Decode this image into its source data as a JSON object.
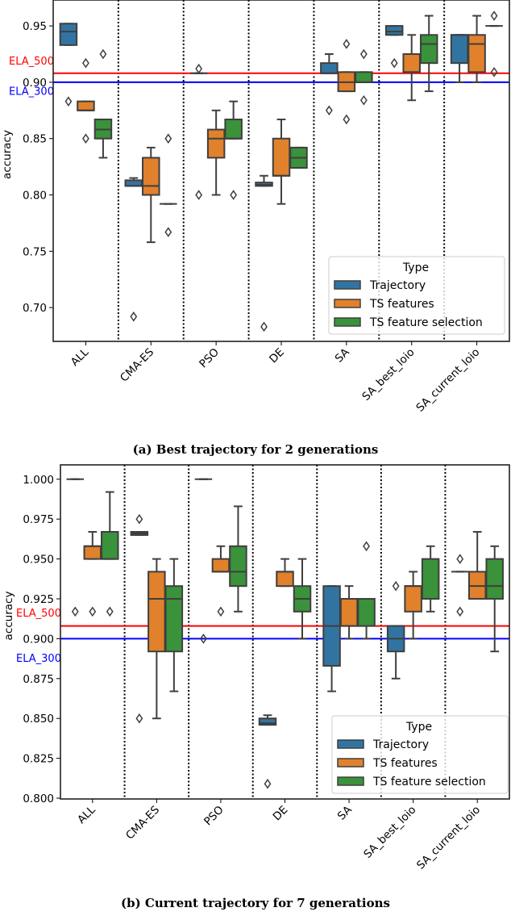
{
  "colors": {
    "Trajectory": "#3274a1",
    "TS features": "#e1812c",
    "TS feature selection": "#3a923a",
    "edge": "#3f3f3f",
    "ELA_500": "#ff0000",
    "ELA_300": "#0000ff"
  },
  "chart_data": [
    {
      "type": "boxplot",
      "caption": "(a) Best trajectory for 2 generations",
      "ylabel": "accuracy",
      "xlabel": "",
      "ylim": [
        0.67,
        0.973
      ],
      "yticks": [
        "0.70",
        "0.75",
        "0.80",
        "0.85",
        "0.90",
        "0.95"
      ],
      "categories": [
        "ALL",
        "CMA-ES",
        "PSO",
        "DE",
        "SA",
        "SA_best_loio",
        "SA_current_loio"
      ],
      "legend": {
        "title": "Type",
        "placement": "lower-right"
      },
      "reference_lines": [
        {
          "name": "ELA_500",
          "value": 0.908
        },
        {
          "name": "ELA_300",
          "value": 0.9
        }
      ],
      "series": [
        {
          "name": "Trajectory",
          "boxes": [
            {
              "stats": [
                0.933,
                0.933,
                0.945,
                0.952,
                0.952
              ],
              "outliers": [
                0.883
              ]
            },
            {
              "stats": [
                0.808,
                0.808,
                0.808,
                0.813,
                0.815
              ],
              "outliers": [
                0.692
              ]
            },
            {
              "stats": [
                0.908,
                0.908,
                0.908,
                0.908,
                0.908
              ],
              "outliers": [
                0.912,
                0.8
              ]
            },
            {
              "stats": [
                0.808,
                0.808,
                0.809,
                0.811,
                0.817
              ],
              "outliers": [
                0.683
              ]
            },
            {
              "stats": [
                0.908,
                0.908,
                0.908,
                0.917,
                0.925
              ],
              "outliers": [
                0.875
              ]
            },
            {
              "stats": [
                0.942,
                0.942,
                0.945,
                0.95,
                0.95
              ],
              "outliers": [
                0.917
              ]
            },
            {
              "stats": [
                0.9,
                0.917,
                0.942,
                0.942,
                0.942
              ],
              "outliers": []
            }
          ]
        },
        {
          "name": "TS features",
          "boxes": [
            {
              "stats": [
                0.875,
                0.875,
                0.875,
                0.883,
                0.883
              ],
              "outliers": [
                0.917,
                0.85
              ]
            },
            {
              "stats": [
                0.758,
                0.8,
                0.808,
                0.833,
                0.842
              ],
              "outliers": []
            },
            {
              "stats": [
                0.8,
                0.833,
                0.85,
                0.858,
                0.875
              ],
              "outliers": []
            },
            {
              "stats": [
                0.792,
                0.817,
                0.817,
                0.85,
                0.867
              ],
              "outliers": []
            },
            {
              "stats": [
                0.892,
                0.892,
                0.9,
                0.909,
                0.909
              ],
              "outliers": [
                0.934,
                0.867
              ]
            },
            {
              "stats": [
                0.884,
                0.909,
                0.909,
                0.925,
                0.942
              ],
              "outliers": []
            },
            {
              "stats": [
                0.9,
                0.909,
                0.934,
                0.942,
                0.959
              ],
              "outliers": []
            }
          ]
        },
        {
          "name": "TS feature selection",
          "boxes": [
            {
              "stats": [
                0.833,
                0.85,
                0.858,
                0.867,
                0.867
              ],
              "outliers": [
                0.925
              ]
            },
            {
              "stats": [
                0.792,
                0.792,
                0.792,
                0.792,
                0.792
              ],
              "outliers": [
                0.85,
                0.767
              ]
            },
            {
              "stats": [
                0.85,
                0.85,
                0.85,
                0.867,
                0.883
              ],
              "outliers": [
                0.8
              ]
            },
            {
              "stats": [
                0.824,
                0.824,
                0.833,
                0.842,
                0.842
              ],
              "outliers": []
            },
            {
              "stats": [
                0.9,
                0.9,
                0.9,
                0.909,
                0.909
              ],
              "outliers": [
                0.925,
                0.884
              ]
            },
            {
              "stats": [
                0.892,
                0.917,
                0.934,
                0.942,
                0.959
              ],
              "outliers": []
            },
            {
              "stats": [
                0.95,
                0.95,
                0.95,
                0.95,
                0.95
              ],
              "outliers": [
                0.959,
                0.909
              ]
            }
          ]
        }
      ]
    },
    {
      "type": "boxplot",
      "caption": "(b) Current trajectory for 7 generations",
      "ylabel": "accuracy",
      "xlabel": "",
      "ylim": [
        0.7995,
        1.009
      ],
      "yticks": [
        "0.800",
        "0.825",
        "0.850",
        "0.875",
        "0.900",
        "0.925",
        "0.950",
        "0.975",
        "1.000"
      ],
      "categories": [
        "ALL",
        "CMA-ES",
        "PSO",
        "DE",
        "SA",
        "SA_best_loio",
        "SA_current_loio"
      ],
      "legend": {
        "title": "Type",
        "placement": "lower-right"
      },
      "reference_lines": [
        {
          "name": "ELA_500",
          "value": 0.908
        },
        {
          "name": "ELA_300",
          "value": 0.9
        }
      ],
      "series": [
        {
          "name": "Trajectory",
          "boxes": [
            {
              "stats": [
                1.0,
                1.0,
                1.0,
                1.0,
                1.0
              ],
              "outliers": [
                0.917
              ]
            },
            {
              "stats": [
                0.965,
                0.965,
                0.966,
                0.967,
                0.967
              ],
              "outliers": [
                0.975,
                0.85
              ]
            },
            {
              "stats": [
                1.0,
                1.0,
                1.0,
                1.0,
                1.0
              ],
              "outliers": [
                0.9
              ]
            },
            {
              "stats": [
                0.846,
                0.846,
                0.847,
                0.85,
                0.852
              ],
              "outliers": [
                0.809
              ]
            },
            {
              "stats": [
                0.867,
                0.883,
                0.908,
                0.933,
                0.933
              ],
              "outliers": []
            },
            {
              "stats": [
                0.875,
                0.892,
                0.9,
                0.908,
                0.908
              ],
              "outliers": [
                0.933
              ]
            },
            {
              "stats": [
                0.942,
                0.942,
                0.942,
                0.942,
                0.942
              ],
              "outliers": [
                0.95,
                0.917
              ]
            }
          ]
        },
        {
          "name": "TS features",
          "boxes": [
            {
              "stats": [
                0.95,
                0.95,
                0.958,
                0.958,
                0.967
              ],
              "outliers": [
                0.917
              ]
            },
            {
              "stats": [
                0.85,
                0.892,
                0.925,
                0.942,
                0.95
              ],
              "outliers": []
            },
            {
              "stats": [
                0.942,
                0.942,
                0.942,
                0.95,
                0.958
              ],
              "outliers": [
                0.917
              ]
            },
            {
              "stats": [
                0.933,
                0.933,
                0.942,
                0.942,
                0.95
              ],
              "outliers": []
            },
            {
              "stats": [
                0.9,
                0.908,
                0.925,
                0.925,
                0.933
              ],
              "outliers": []
            },
            {
              "stats": [
                0.9,
                0.917,
                0.933,
                0.933,
                0.942
              ],
              "outliers": []
            },
            {
              "stats": [
                0.925,
                0.925,
                0.933,
                0.942,
                0.967
              ],
              "outliers": []
            }
          ]
        },
        {
          "name": "TS feature selection",
          "boxes": [
            {
              "stats": [
                0.95,
                0.95,
                0.95,
                0.967,
                0.992
              ],
              "outliers": [
                0.917
              ]
            },
            {
              "stats": [
                0.867,
                0.892,
                0.925,
                0.933,
                0.95
              ],
              "outliers": []
            },
            {
              "stats": [
                0.917,
                0.933,
                0.942,
                0.958,
                0.983
              ],
              "outliers": []
            },
            {
              "stats": [
                0.9,
                0.917,
                0.925,
                0.933,
                0.95
              ],
              "outliers": []
            },
            {
              "stats": [
                0.9,
                0.908,
                0.925,
                0.925,
                0.925
              ],
              "outliers": [
                0.958
              ]
            },
            {
              "stats": [
                0.917,
                0.925,
                0.925,
                0.95,
                0.958
              ],
              "outliers": []
            },
            {
              "stats": [
                0.892,
                0.925,
                0.933,
                0.95,
                0.958
              ],
              "outliers": []
            }
          ]
        }
      ]
    }
  ]
}
